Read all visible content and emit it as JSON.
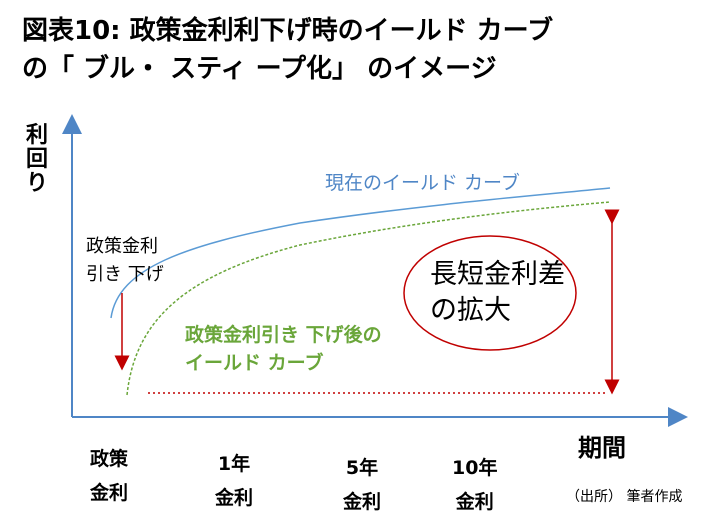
{
  "title": {
    "line1": "図表10: 政策金利利下げ時のイールド カーブ",
    "line2": "の「 ブル・ スティ ープ化」 のイメージ"
  },
  "axes": {
    "y_label_chars": [
      "利",
      "回",
      "り"
    ],
    "x_label": "期間"
  },
  "x_ticks": [
    {
      "line1": "政策",
      "line2": "金利"
    },
    {
      "line1": "1年",
      "line2": "金利"
    },
    {
      "line1": "5年",
      "line2": "金利"
    },
    {
      "line1": "10年",
      "line2": "金利"
    }
  ],
  "curves": {
    "current": {
      "label": "現在のイールド カーブ",
      "color": "#4f86c6"
    },
    "after_cut": {
      "label_line1": "政策金利引き 下げ後の",
      "label_line2": "イールド カーブ",
      "color": "#6aa63a"
    }
  },
  "annotations": {
    "rate_cut_line1": "政策金利",
    "rate_cut_line2": "引き 下げ",
    "spread_line1": "長短金利差",
    "spread_line2": "の拡大",
    "arrow_color": "#c00000"
  },
  "source": "（出所） 筆者作成"
}
